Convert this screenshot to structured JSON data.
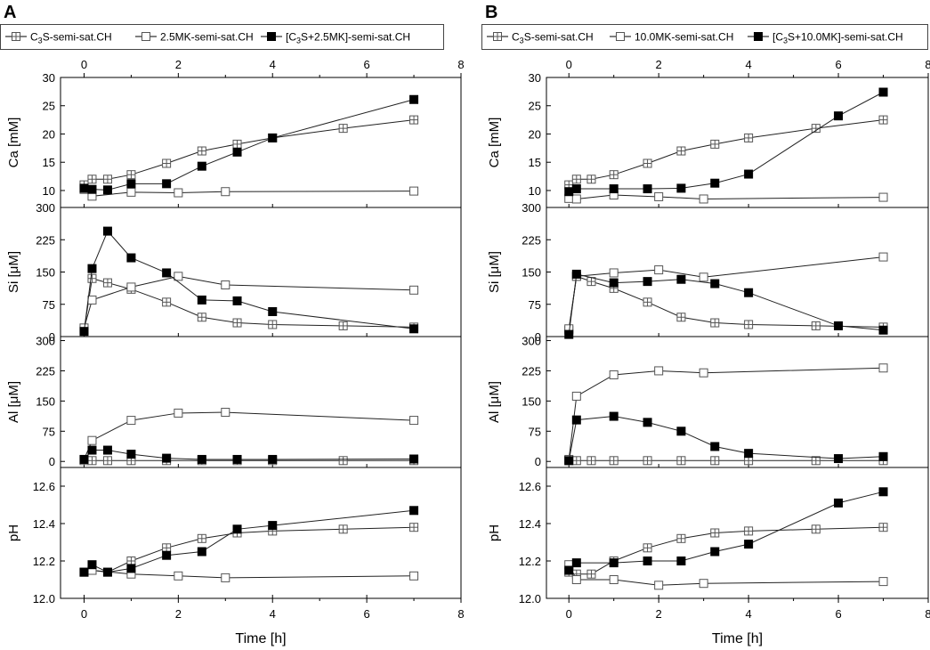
{
  "chart_data": [
    {
      "panel": "A",
      "type": "line",
      "legend": [
        "C3S-semi-sat.CH",
        "2.5MK-semi-sat.CH",
        "[C3S+2.5MK]-semi-sat.CH"
      ],
      "legend_markers": [
        "crossed-square",
        "open-square",
        "filled-square"
      ],
      "xlabel": "Time [h]",
      "xlim": [
        -0.5,
        8
      ],
      "xticks": [
        0,
        2,
        4,
        6,
        8
      ],
      "subplots": [
        {
          "ylabel": "Ca [mM]",
          "ylim": [
            7,
            30
          ],
          "yticks": [
            10,
            15,
            20,
            25,
            30
          ],
          "series": [
            {
              "name": "C3S-semi-sat.CH",
              "x": [
                0,
                0.17,
                0.5,
                1,
                1.75,
                2.5,
                3.25,
                4,
                5.5,
                7
              ],
              "y": [
                11,
                12,
                12,
                12.8,
                14.8,
                17,
                18.2,
                19.3,
                21,
                22.5
              ]
            },
            {
              "name": "2.5MK-semi-sat.CH",
              "x": [
                0,
                0.17,
                1,
                2,
                3,
                7
              ],
              "y": [
                10.2,
                9,
                9.7,
                9.6,
                9.8,
                9.9
              ]
            },
            {
              "name": "[C3S+2.5MK]-semi-sat.CH",
              "x": [
                0,
                0.17,
                0.5,
                1,
                1.75,
                2.5,
                3.25,
                4,
                7
              ],
              "y": [
                10.4,
                10.2,
                10.1,
                11.2,
                11.2,
                14.3,
                16.8,
                19.3,
                26.1
              ]
            }
          ]
        },
        {
          "ylabel": "Si [μM]",
          "ylim": [
            0,
            300
          ],
          "yticks": [
            0,
            75,
            150,
            225,
            300
          ],
          "series": [
            {
              "name": "C3S-semi-sat.CH",
              "x": [
                0,
                0.17,
                0.5,
                1,
                1.75,
                2.5,
                3.25,
                4,
                5.5,
                7
              ],
              "y": [
                15,
                135,
                125,
                110,
                80,
                45,
                32,
                28,
                25,
                22
              ]
            },
            {
              "name": "2.5MK-semi-sat.CH",
              "x": [
                0,
                0.17,
                1,
                2,
                3,
                7
              ],
              "y": [
                20,
                85,
                115,
                140,
                120,
                108
              ]
            },
            {
              "name": "[C3S+2.5MK]-semi-sat.CH",
              "x": [
                0,
                0.17,
                0.5,
                1,
                1.75,
                2.5,
                3.25,
                4,
                7
              ],
              "y": [
                12,
                158,
                245,
                183,
                148,
                85,
                83,
                58,
                18
              ]
            }
          ]
        },
        {
          "ylabel": "Al [μM]",
          "ylim": [
            -15,
            310
          ],
          "yticks": [
            0,
            75,
            150,
            225,
            300
          ],
          "series": [
            {
              "name": "C3S-semi-sat.CH",
              "x": [
                0,
                0.17,
                0.5,
                1,
                1.75,
                2.5,
                3.25,
                4,
                5.5,
                7
              ],
              "y": [
                2,
                2,
                2,
                2,
                2,
                2,
                2,
                2,
                2,
                2
              ]
            },
            {
              "name": "2.5MK-semi-sat.CH",
              "x": [
                0,
                0.17,
                1,
                2,
                3,
                7
              ],
              "y": [
                5,
                52,
                102,
                120,
                122,
                102
              ]
            },
            {
              "name": "[C3S+2.5MK]-semi-sat.CH",
              "x": [
                0,
                0.17,
                0.5,
                1,
                1.75,
                2.5,
                3.25,
                4,
                7
              ],
              "y": [
                5,
                28,
                28,
                18,
                8,
                5,
                5,
                5,
                6
              ]
            }
          ]
        },
        {
          "ylabel": "pH",
          "ylim": [
            12.0,
            12.7
          ],
          "yticks": [
            12.0,
            12.2,
            12.4,
            12.6
          ],
          "series": [
            {
              "name": "C3S-semi-sat.CH",
              "x": [
                0,
                0.17,
                0.5,
                1,
                1.75,
                2.5,
                3.25,
                4,
                5.5,
                7
              ],
              "y": [
                12.14,
                12.15,
                12.14,
                12.2,
                12.27,
                12.32,
                12.35,
                12.36,
                12.37,
                12.38
              ]
            },
            {
              "name": "2.5MK-semi-sat.CH",
              "x": [
                0,
                0.17,
                1,
                2,
                3,
                7
              ],
              "y": [
                12.14,
                12.15,
                12.13,
                12.12,
                12.11,
                12.12
              ]
            },
            {
              "name": "[C3S+2.5MK]-semi-sat.CH",
              "x": [
                0,
                0.17,
                0.5,
                1,
                1.75,
                2.5,
                3.25,
                4,
                7
              ],
              "y": [
                12.14,
                12.18,
                12.14,
                12.16,
                12.23,
                12.25,
                12.37,
                12.39,
                12.47
              ]
            }
          ]
        }
      ]
    },
    {
      "panel": "B",
      "type": "line",
      "legend": [
        "C3S-semi-sat.CH",
        "10.0MK-semi-sat.CH",
        "[C3S+10.0MK]-semi-sat.CH"
      ],
      "legend_markers": [
        "crossed-square",
        "open-square",
        "filled-square"
      ],
      "xlabel": "Time [h]",
      "xlim": [
        -0.5,
        8
      ],
      "xticks": [
        0,
        2,
        4,
        6,
        8
      ],
      "subplots": [
        {
          "ylabel": "Ca [mM]",
          "ylim": [
            7,
            30
          ],
          "yticks": [
            10,
            15,
            20,
            25,
            30
          ],
          "series": [
            {
              "name": "C3S-semi-sat.CH",
              "x": [
                0,
                0.17,
                0.5,
                1,
                1.75,
                2.5,
                3.25,
                4,
                5.5,
                7
              ],
              "y": [
                11,
                12,
                12,
                12.8,
                14.8,
                17,
                18.2,
                19.3,
                21,
                22.5
              ]
            },
            {
              "name": "10.0MK-semi-sat.CH",
              "x": [
                0,
                0.17,
                1,
                2,
                3,
                7
              ],
              "y": [
                8.6,
                8.5,
                9.2,
                8.9,
                8.5,
                8.8
              ]
            },
            {
              "name": "[C3S+10.0MK]-semi-sat.CH",
              "x": [
                0,
                0.17,
                1,
                1.75,
                2.5,
                3.25,
                4,
                6,
                7
              ],
              "y": [
                9.8,
                10.3,
                10.3,
                10.3,
                10.4,
                11.3,
                12.9,
                23.2,
                27.4
              ]
            }
          ]
        },
        {
          "ylabel": "Si [μM]",
          "ylim": [
            0,
            300
          ],
          "yticks": [
            0,
            75,
            150,
            225,
            300
          ],
          "series": [
            {
              "name": "C3S-semi-sat.CH",
              "x": [
                0,
                0.17,
                0.5,
                1,
                1.75,
                2.5,
                3.25,
                4,
                5.5,
                7
              ],
              "y": [
                15,
                140,
                128,
                112,
                80,
                45,
                32,
                28,
                25,
                22
              ]
            },
            {
              "name": "10.0MK-semi-sat.CH",
              "x": [
                0,
                0.17,
                1,
                2,
                3,
                7
              ],
              "y": [
                18,
                140,
                148,
                155,
                138,
                185
              ]
            },
            {
              "name": "[C3S+10.0MK]-semi-sat.CH",
              "x": [
                0,
                0.17,
                1,
                1.75,
                2.5,
                3.25,
                4,
                6,
                7
              ],
              "y": [
                5,
                145,
                125,
                128,
                133,
                123,
                102,
                25,
                15
              ]
            }
          ]
        },
        {
          "ylabel": "Al [μM]",
          "ylim": [
            -15,
            310
          ],
          "yticks": [
            0,
            75,
            150,
            225,
            300
          ],
          "series": [
            {
              "name": "C3S-semi-sat.CH",
              "x": [
                0,
                0.17,
                0.5,
                1,
                1.75,
                2.5,
                3.25,
                4,
                5.5,
                7
              ],
              "y": [
                2,
                2,
                2,
                2,
                2,
                2,
                2,
                2,
                2,
                2
              ]
            },
            {
              "name": "10.0MK-semi-sat.CH",
              "x": [
                0,
                0.17,
                1,
                2,
                3,
                7
              ],
              "y": [
                5,
                162,
                215,
                225,
                220,
                232
              ]
            },
            {
              "name": "[C3S+10.0MK]-semi-sat.CH",
              "x": [
                0,
                0.17,
                1,
                1.75,
                2.5,
                3.25,
                4,
                6,
                7
              ],
              "y": [
                2,
                103,
                112,
                97,
                75,
                37,
                20,
                7,
                12
              ]
            }
          ]
        },
        {
          "ylabel": "pH",
          "ylim": [
            12.0,
            12.7
          ],
          "yticks": [
            12.0,
            12.2,
            12.4,
            12.6
          ],
          "series": [
            {
              "name": "C3S-semi-sat.CH",
              "x": [
                0,
                0.17,
                0.5,
                1,
                1.75,
                2.5,
                3.25,
                4,
                5.5,
                7
              ],
              "y": [
                12.14,
                12.13,
                12.13,
                12.2,
                12.27,
                12.32,
                12.35,
                12.36,
                12.37,
                12.38
              ]
            },
            {
              "name": "10.0MK-semi-sat.CH",
              "x": [
                0,
                0.17,
                1,
                2,
                3,
                7
              ],
              "y": [
                12.18,
                12.1,
                12.1,
                12.07,
                12.08,
                12.09
              ]
            },
            {
              "name": "[C3S+10.0MK]-semi-sat.CH",
              "x": [
                0,
                0.17,
                1,
                1.75,
                2.5,
                3.25,
                4,
                6,
                7
              ],
              "y": [
                12.15,
                12.19,
                12.19,
                12.2,
                12.2,
                12.25,
                12.29,
                12.51,
                12.57
              ]
            }
          ]
        }
      ]
    }
  ]
}
